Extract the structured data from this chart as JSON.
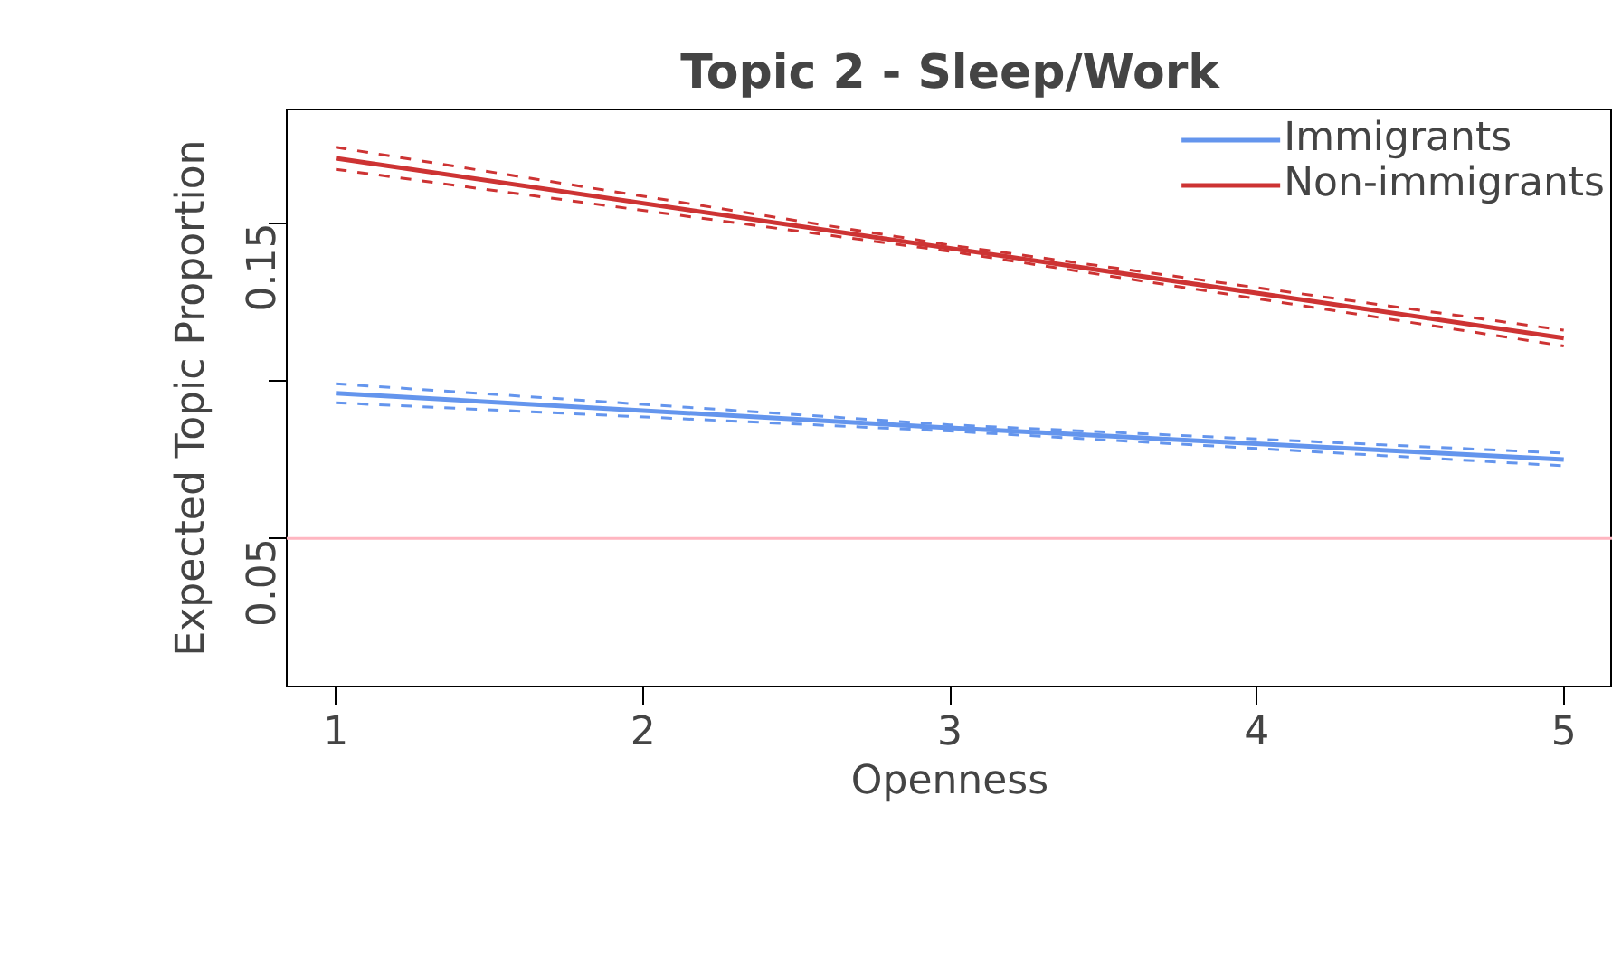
{
  "chart_data": {
    "type": "line",
    "title": "Topic 2 - Sleep/Work",
    "xlabel": "Openness",
    "ylabel": "Expected Topic Proportion",
    "xlim": [
      0.84,
      5.16
    ],
    "ylim": [
      0.003,
      0.186
    ],
    "xticks": [
      1,
      2,
      3,
      4,
      5
    ],
    "yticks": [
      0.05,
      {
        "value": 0.1,
        "label": null
      },
      0.15
    ],
    "grid": false,
    "legend": "top right",
    "line_style": "solid",
    "marker": "none",
    "series": [
      {
        "name": "Immigrants",
        "color": "#6495ed",
        "x": [
          1,
          3,
          5
        ],
        "values": [
          0.096,
          0.085,
          0.075
        ]
      },
      {
        "name": "Non-immigrants",
        "color": "#cd3333",
        "x": [
          1,
          3,
          5
        ],
        "values": [
          0.1705,
          0.142,
          0.1135
        ]
      },
      {
        "color": "#6495ed",
        "x": [
          1,
          3,
          5
        ],
        "values": [
          0.093,
          0.084,
          0.073
        ],
        "line_style": "dashed"
      },
      {
        "color": "#6495ed",
        "x": [
          1,
          3,
          5
        ],
        "values": [
          0.099,
          0.086,
          0.077
        ],
        "line_style": "dashed"
      },
      {
        "color": "#cd3333",
        "x": [
          1,
          3,
          5
        ],
        "values": [
          0.167,
          0.141,
          0.111
        ],
        "line_style": "dashed"
      },
      {
        "color": "#cd3333",
        "x": [
          1,
          3,
          5
        ],
        "values": [
          0.174,
          0.143,
          0.116
        ],
        "line_style": "dashed"
      }
    ],
    "ref_lines": [
      {
        "axis": "y",
        "value": 0.05,
        "color": "#ffb6c1",
        "line_style": "solid"
      }
    ]
  }
}
